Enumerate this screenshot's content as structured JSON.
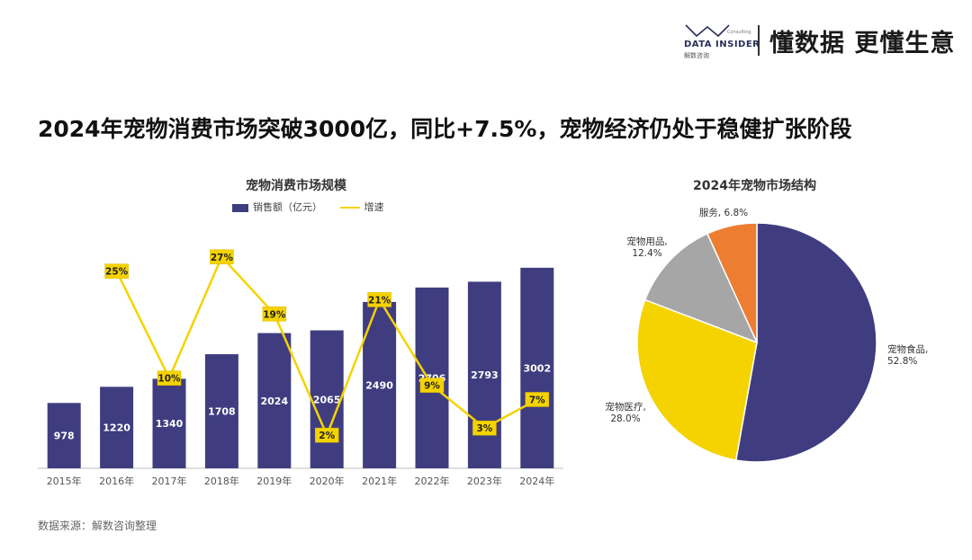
{
  "header": {
    "logo_text": "DATA INSIDER",
    "logo_sub": "解数咨询",
    "logo_tiny": "Consulting",
    "slogan": "懂数据 更懂生意"
  },
  "headline": "2024年宠物消费市场突破3000亿，同比+7.5%，宠物经济仍处于稳健扩张阶段",
  "source": "数据来源：解数咨询整理",
  "colors": {
    "bar": "#3f3d80",
    "line": "#f5d300",
    "label_bg": "#f5d300",
    "pie_food": "#3f3d80",
    "pie_medical": "#f5d300",
    "pie_supplies": "#a6a6a6",
    "pie_service": "#ed7d31"
  },
  "chart_data": [
    {
      "type": "bar",
      "title": "宠物消费市场规模",
      "legend": {
        "bar_label": "销售额（亿元）",
        "line_label": "增速"
      },
      "categories": [
        "2015年",
        "2016年",
        "2017年",
        "2018年",
        "2019年",
        "2020年",
        "2021年",
        "2022年",
        "2023年",
        "2024年"
      ],
      "series": [
        {
          "name": "销售额（亿元）",
          "kind": "bar",
          "values": [
            978,
            1220,
            1340,
            1708,
            2024,
            2065,
            2490,
            2706,
            2793,
            3002
          ]
        },
        {
          "name": "增速",
          "kind": "line",
          "values": [
            null,
            25,
            10,
            27,
            19,
            2,
            21,
            9,
            3,
            7
          ],
          "labels": [
            "",
            "25%",
            "10%",
            "27%",
            "19%",
            "2%",
            "21%",
            "9%",
            "3%",
            "7%"
          ]
        }
      ],
      "ylim": [
        0,
        3350
      ],
      "y2lim": [
        0,
        30
      ]
    },
    {
      "type": "pie",
      "title": "2024年宠物市场结构",
      "slices": [
        {
          "name": "宠物食品",
          "value": 52.8,
          "label": "52.8%"
        },
        {
          "name": "宠物医疗",
          "value": 28.0,
          "label": "28.0%"
        },
        {
          "name": "宠物用品",
          "value": 12.4,
          "label": "12.4%"
        },
        {
          "name": "服务",
          "value": 6.8,
          "label": "6.8%"
        }
      ]
    }
  ]
}
